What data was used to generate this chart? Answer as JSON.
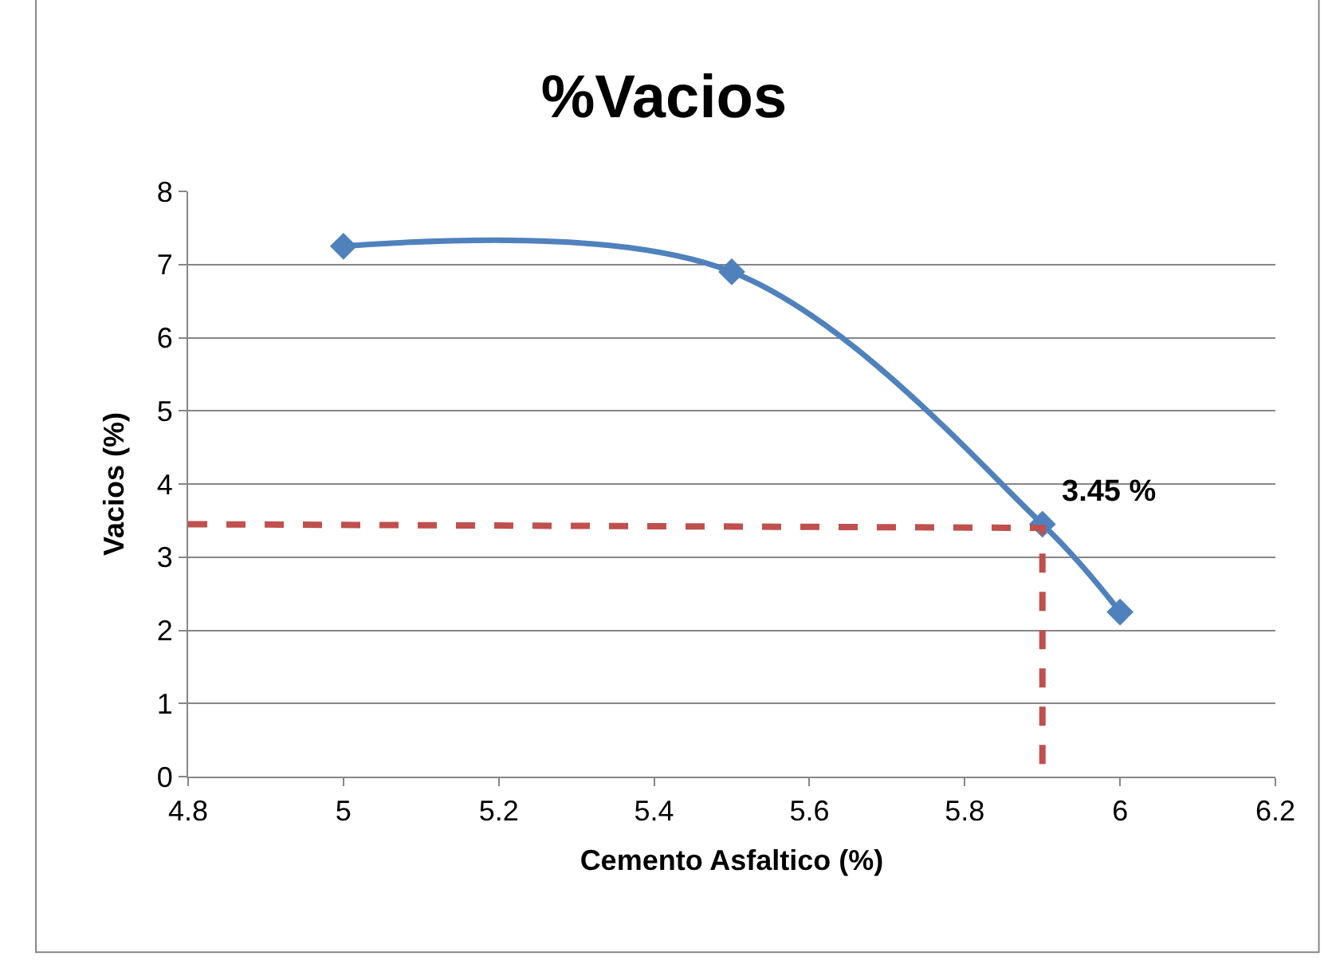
{
  "chart_data": {
    "type": "line",
    "title": "%Vacios",
    "xlabel": "Cemento Asfaltico (%)",
    "ylabel": "Vacios (%)",
    "series": [
      {
        "color": "#4f81bd",
        "x": [
          5,
          5.5,
          5.9,
          6
        ],
        "values": [
          7.25,
          6.9,
          3.45,
          2.25
        ],
        "marker": "diamond",
        "line_style": "solid"
      },
      {
        "color": "#c0504d",
        "x": [
          4.8,
          5.9,
          5.9
        ],
        "values": [
          3.45,
          3.4,
          0
        ],
        "marker": "none",
        "line_style": "dashed"
      }
    ],
    "annotations": [
      {
        "text": "3.45 %",
        "x": 5.9,
        "y": 3.45
      }
    ],
    "xlim": [
      4.8,
      6.2
    ],
    "xticks": [
      4.8,
      5,
      5.2,
      5.4,
      5.6,
      5.8,
      6,
      6.2
    ],
    "ylim": [
      0,
      8
    ],
    "yticks": [
      0,
      1,
      2,
      3,
      4,
      5,
      6,
      7,
      8
    ],
    "grid": "y"
  }
}
